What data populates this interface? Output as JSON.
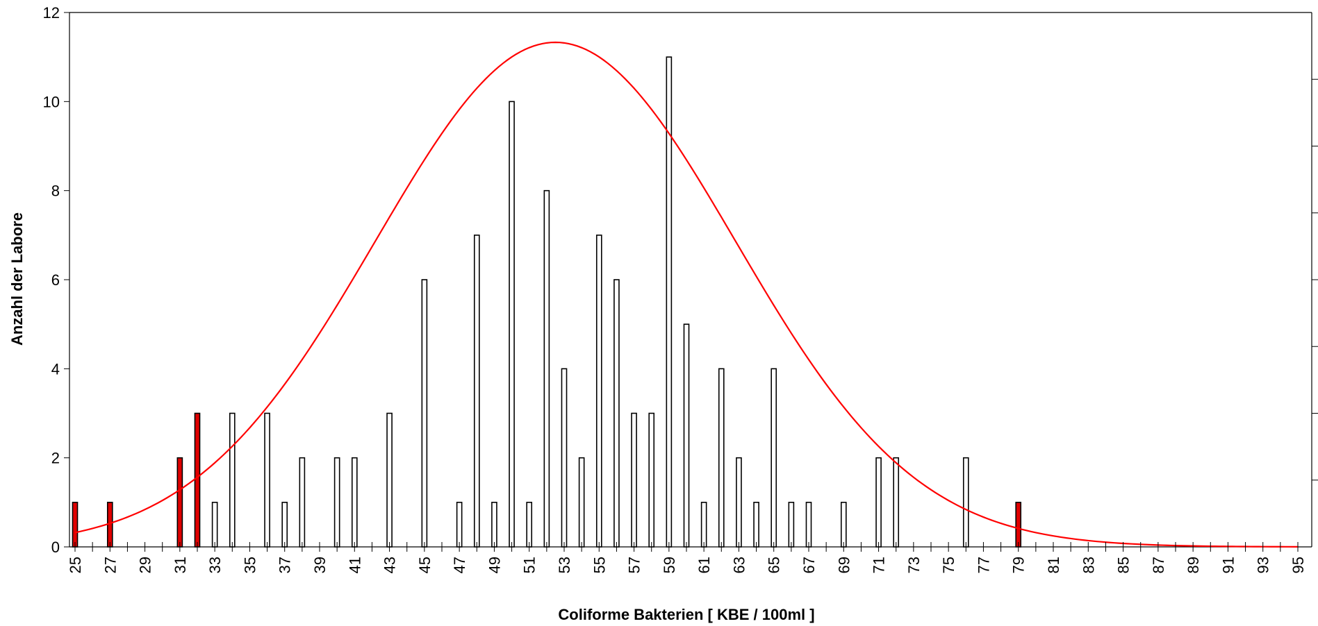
{
  "chart_data": {
    "type": "bar",
    "title": "",
    "xlabel": "Coliforme Bakterien [ KBE / 100ml ]",
    "ylabel": "Anzahl der Labore",
    "xlim": [
      25,
      95
    ],
    "ylim": [
      0,
      12
    ],
    "y_ticks": [
      0,
      2,
      4,
      6,
      8,
      10,
      12
    ],
    "x_tick_labels": [
      25,
      27,
      29,
      31,
      33,
      35,
      37,
      39,
      41,
      43,
      45,
      47,
      49,
      51,
      53,
      55,
      57,
      59,
      61,
      63,
      65,
      67,
      69,
      71,
      73,
      75,
      77,
      79,
      81,
      83,
      85,
      87,
      89,
      91,
      93,
      95
    ],
    "grid": false,
    "legend": "none",
    "colors": {
      "bar_normal": "#ffffff",
      "bar_highlight": "#e00000",
      "bar_stroke": "#000000",
      "curve": "#ff0000"
    },
    "bars": [
      {
        "x": 25,
        "count": 1,
        "highlight": true
      },
      {
        "x": 27,
        "count": 1,
        "highlight": true
      },
      {
        "x": 31,
        "count": 2,
        "highlight": true
      },
      {
        "x": 32,
        "count": 3,
        "highlight": true
      },
      {
        "x": 33,
        "count": 1,
        "highlight": false
      },
      {
        "x": 34,
        "count": 3,
        "highlight": false
      },
      {
        "x": 36,
        "count": 3,
        "highlight": false
      },
      {
        "x": 37,
        "count": 1,
        "highlight": false
      },
      {
        "x": 38,
        "count": 2,
        "highlight": false
      },
      {
        "x": 40,
        "count": 2,
        "highlight": false
      },
      {
        "x": 41,
        "count": 2,
        "highlight": false
      },
      {
        "x": 43,
        "count": 3,
        "highlight": false
      },
      {
        "x": 45,
        "count": 6,
        "highlight": false
      },
      {
        "x": 47,
        "count": 1,
        "highlight": false
      },
      {
        "x": 48,
        "count": 7,
        "highlight": false
      },
      {
        "x": 49,
        "count": 1,
        "highlight": false
      },
      {
        "x": 50,
        "count": 10,
        "highlight": false
      },
      {
        "x": 51,
        "count": 1,
        "highlight": false
      },
      {
        "x": 52,
        "count": 8,
        "highlight": false
      },
      {
        "x": 53,
        "count": 4,
        "highlight": false
      },
      {
        "x": 54,
        "count": 2,
        "highlight": false
      },
      {
        "x": 55,
        "count": 7,
        "highlight": false
      },
      {
        "x": 56,
        "count": 6,
        "highlight": false
      },
      {
        "x": 57,
        "count": 3,
        "highlight": false
      },
      {
        "x": 58,
        "count": 3,
        "highlight": false
      },
      {
        "x": 59,
        "count": 11,
        "highlight": false
      },
      {
        "x": 60,
        "count": 5,
        "highlight": false
      },
      {
        "x": 61,
        "count": 1,
        "highlight": false
      },
      {
        "x": 62,
        "count": 4,
        "highlight": false
      },
      {
        "x": 63,
        "count": 2,
        "highlight": false
      },
      {
        "x": 64,
        "count": 1,
        "highlight": false
      },
      {
        "x": 65,
        "count": 4,
        "highlight": false
      },
      {
        "x": 66,
        "count": 1,
        "highlight": false
      },
      {
        "x": 67,
        "count": 1,
        "highlight": false
      },
      {
        "x": 69,
        "count": 1,
        "highlight": false
      },
      {
        "x": 71,
        "count": 2,
        "highlight": false
      },
      {
        "x": 72,
        "count": 2,
        "highlight": false
      },
      {
        "x": 76,
        "count": 2,
        "highlight": false
      },
      {
        "x": 79,
        "count": 1,
        "highlight": true
      }
    ],
    "curve": {
      "type": "normal-fit",
      "peak_x": 52.5,
      "peak_y": 11.33,
      "sigma": 10.3
    }
  }
}
